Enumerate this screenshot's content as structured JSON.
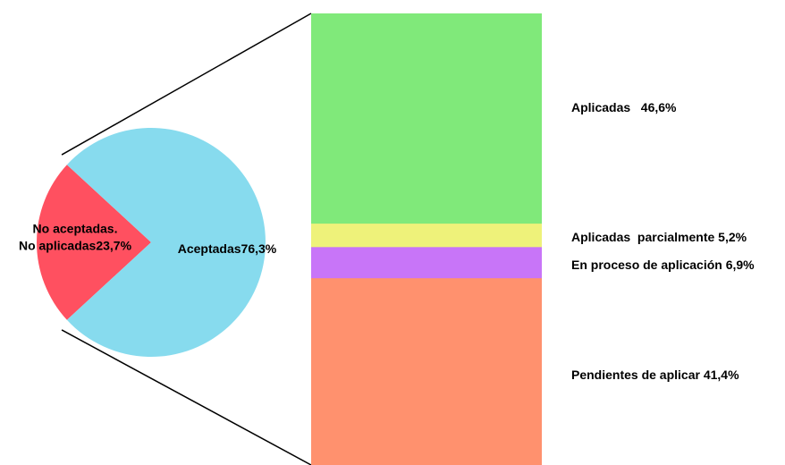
{
  "chart_data": {
    "type": "bar-of-pie",
    "pie": {
      "slices": [
        {
          "label_lines": [
            "No aceptadas.",
            "No aplicadas23,7%"
          ],
          "value": 23.7,
          "color": "#ff5060"
        },
        {
          "label_lines": [
            "Aceptadas76,3%"
          ],
          "value": 76.3,
          "color": "#87dbee"
        }
      ]
    },
    "bar": {
      "segments": [
        {
          "label": "Aplicadas   46,6%",
          "value": 46.6,
          "color": "#80e97a"
        },
        {
          "label": "Aplicadas  parcialmente 5,2%",
          "value": 5.2,
          "color": "#eef27a"
        },
        {
          "label": "En proceso de aplicación 6,9%",
          "value": 6.9,
          "color": "#c875f8"
        },
        {
          "label": "Pendientes de aplicar 41,4%",
          "value": 41.4,
          "color": "#ff916e"
        }
      ]
    },
    "legend": "none",
    "grid": false
  }
}
